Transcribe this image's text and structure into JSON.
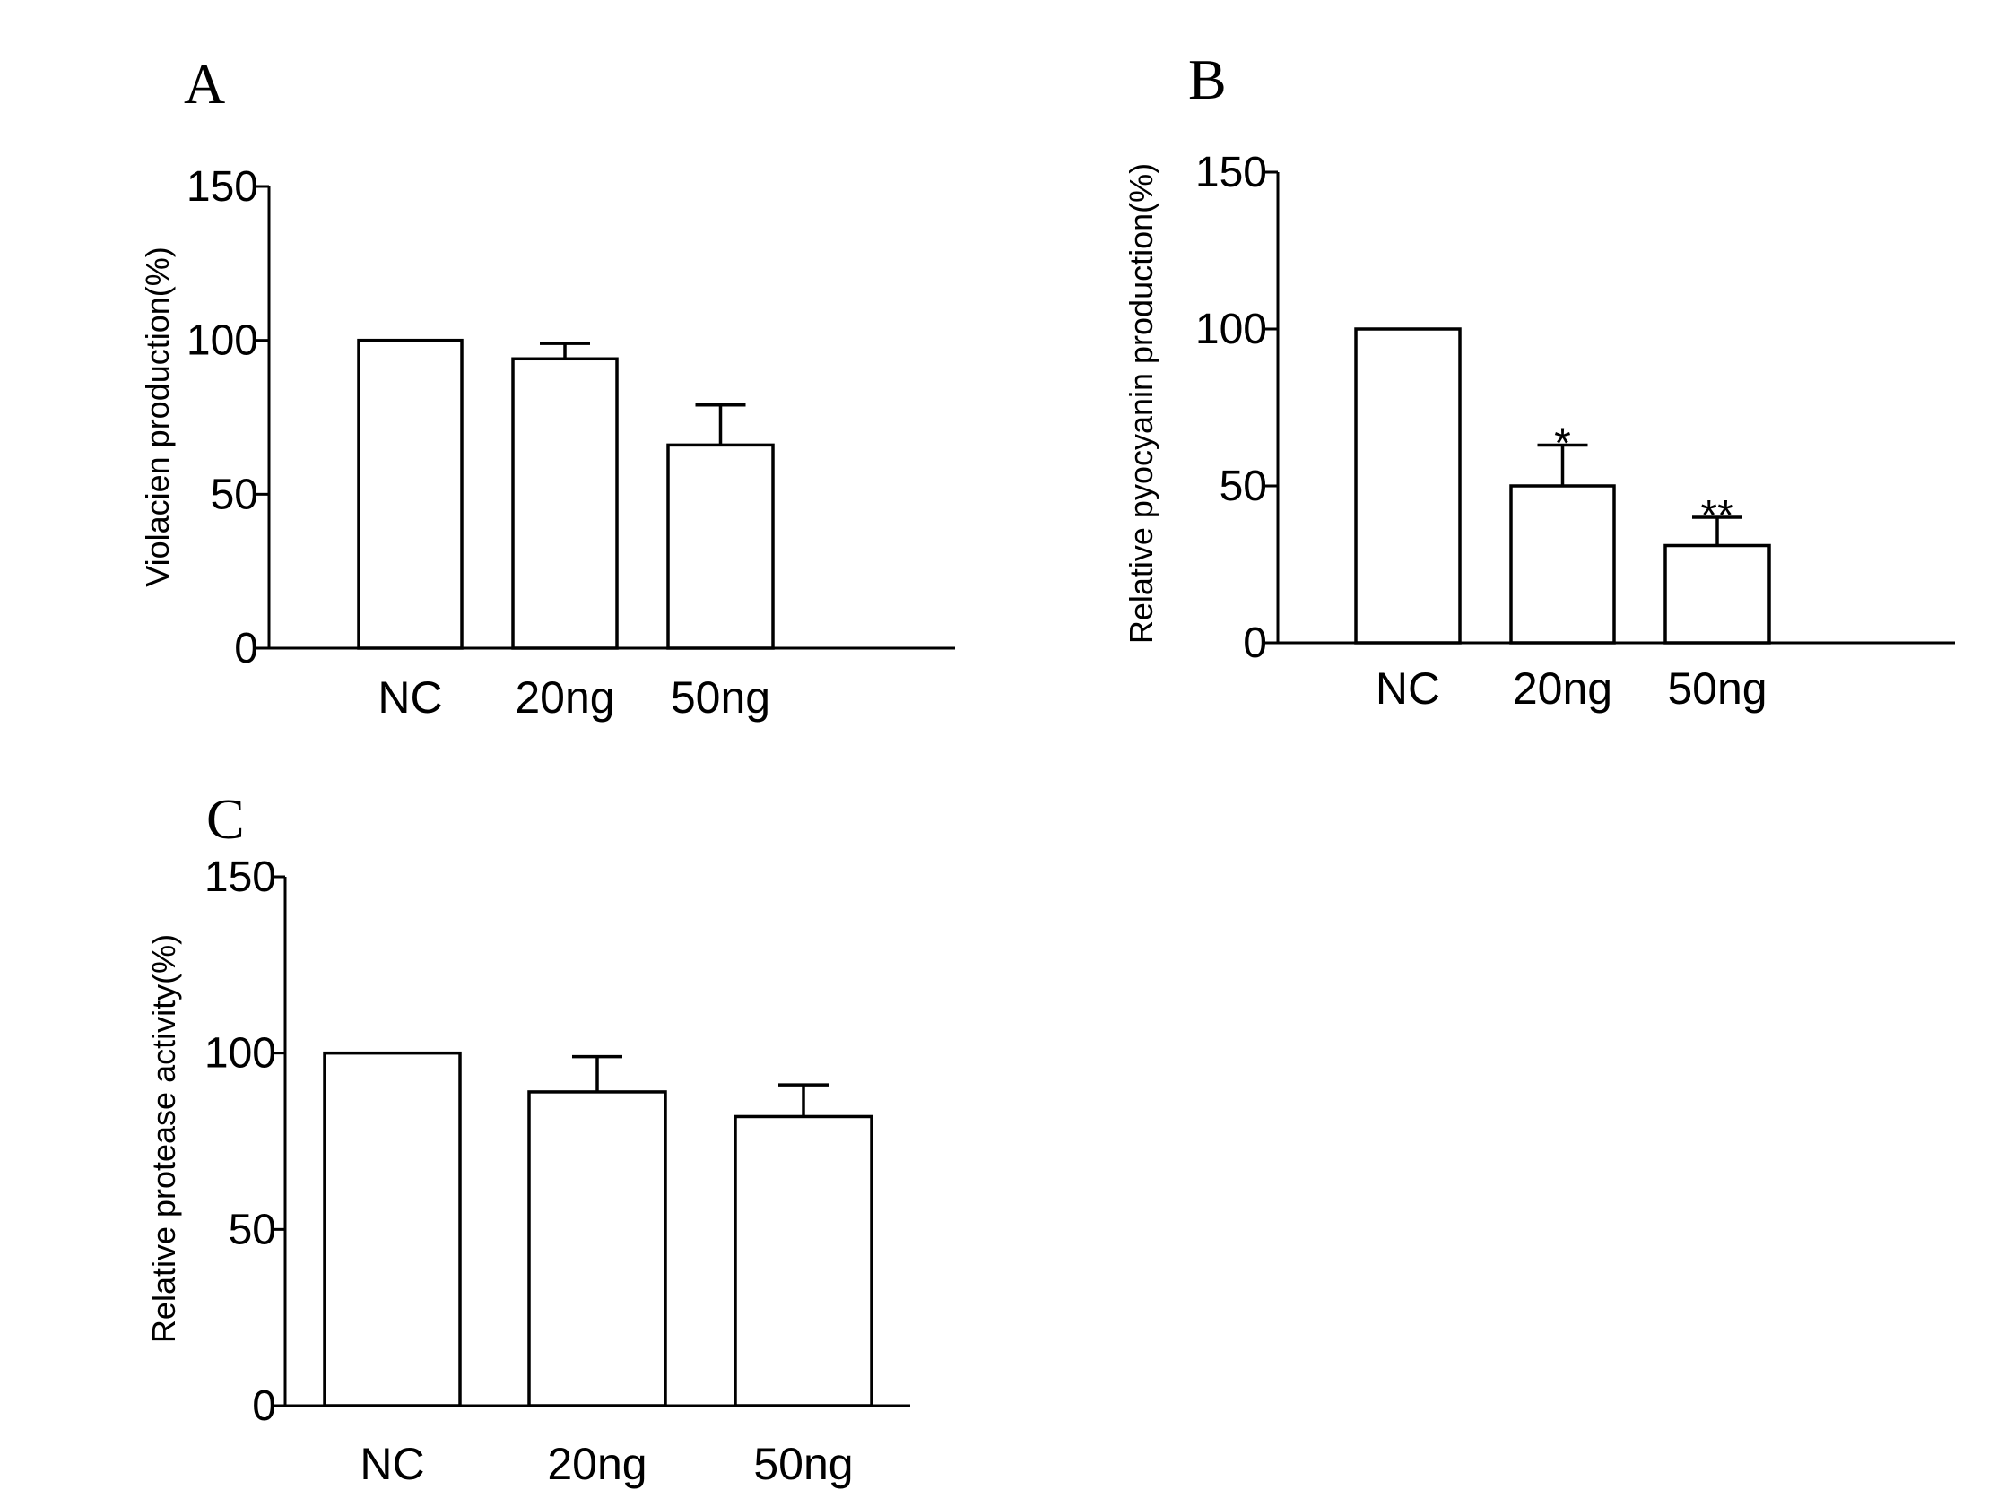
{
  "chart_data": [
    {
      "panel": "A",
      "type": "bar",
      "title": "",
      "xlabel": "",
      "ylabel": "Violacien production(%)",
      "ylim": [
        0,
        150
      ],
      "yticks": [
        "0",
        "50",
        "100",
        "150"
      ],
      "categories": [
        "NC",
        "20ng",
        "50ng"
      ],
      "values": [
        100,
        94,
        66
      ],
      "errors": [
        0,
        5,
        13
      ],
      "annotations": [
        "",
        "",
        ""
      ]
    },
    {
      "panel": "B",
      "type": "bar",
      "title": "",
      "xlabel": "",
      "ylabel": "Relative pyocyanin production(%)",
      "ylim": [
        0,
        150
      ],
      "yticks": [
        "0",
        "50",
        "100",
        "150"
      ],
      "categories": [
        "NC",
        "20ng",
        "50ng"
      ],
      "values": [
        100,
        50,
        31
      ],
      "errors": [
        0,
        13,
        9
      ],
      "annotations": [
        "",
        "*",
        "**"
      ]
    },
    {
      "panel": "C",
      "type": "bar",
      "title": "",
      "xlabel": "",
      "ylabel": "Relative protease activity(%)",
      "ylim": [
        0,
        150
      ],
      "yticks": [
        "0",
        "50",
        "100",
        "150"
      ],
      "categories": [
        "NC",
        "20ng",
        "50ng"
      ],
      "values": [
        100,
        89,
        82
      ],
      "errors": [
        0,
        10,
        9
      ],
      "annotations": [
        "",
        "",
        ""
      ]
    }
  ]
}
